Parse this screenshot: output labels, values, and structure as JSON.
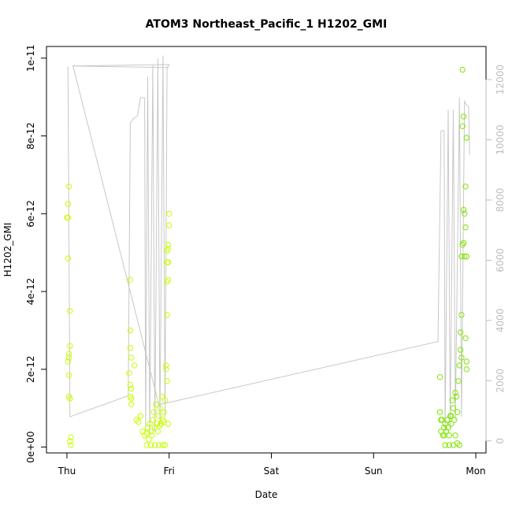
{
  "chart_data": {
    "type": "scatter",
    "title": "ATOM3 Northeast_Pacific_1 H1202_GMI",
    "xlabel": "Date",
    "ylabel": "H1202_GMI",
    "x_unit": "days since Thu 00:00",
    "xlim": [
      -0.2,
      4.1
    ],
    "ylim": [
      -1.5e-13,
      1.03e-11
    ],
    "y2lim": [
      -400,
      13100
    ],
    "x_ticks": [
      {
        "value": 0,
        "label": "Thu"
      },
      {
        "value": 1,
        "label": "Fri"
      },
      {
        "value": 2,
        "label": "Sat"
      },
      {
        "value": 3,
        "label": "Sun"
      },
      {
        "value": 4,
        "label": "Mon"
      }
    ],
    "y_ticks": [
      {
        "value": 0,
        "label": "0e+00"
      },
      {
        "value": 2e-12,
        "label": "2e-12"
      },
      {
        "value": 4e-12,
        "label": "4e-12"
      },
      {
        "value": 6e-12,
        "label": "6e-12"
      },
      {
        "value": 8e-12,
        "label": "8e-12"
      },
      {
        "value": 1e-11,
        "label": "1e-11"
      }
    ],
    "y2_ticks": [
      {
        "value": 0,
        "label": "0"
      },
      {
        "value": 2000,
        "label": "2000"
      },
      {
        "value": 4000,
        "label": "4000"
      },
      {
        "value": 6000,
        "label": "6000"
      },
      {
        "value": 8000,
        "label": "8000"
      },
      {
        "value": 10000,
        "label": "10000"
      },
      {
        "value": 12000,
        "label": "12000"
      }
    ],
    "series": [
      {
        "color": "#c8ff00",
        "points": [
          {
            "x": 0.02,
            "y": 6.7e-12
          },
          {
            "x": 0.01,
            "y": 6.25e-12
          },
          {
            "x": 0.0,
            "y": 5.9e-12
          },
          {
            "x": 0.01,
            "y": 5.9e-12
          },
          {
            "x": 0.01,
            "y": 4.85e-12
          },
          {
            "x": 0.03,
            "y": 3.5e-12
          },
          {
            "x": 0.03,
            "y": 2.6e-12
          },
          {
            "x": 0.02,
            "y": 2.4e-12
          },
          {
            "x": 0.02,
            "y": 2.3e-12
          },
          {
            "x": 0.01,
            "y": 2.2e-12
          },
          {
            "x": 0.02,
            "y": 1.85e-12
          },
          {
            "x": 0.02,
            "y": 1.3e-12
          },
          {
            "x": 0.03,
            "y": 1.25e-12
          },
          {
            "x": 0.04,
            "y": 2.5e-13
          },
          {
            "x": 0.03,
            "y": 1.5e-13
          },
          {
            "x": 0.04,
            "y": 5e-14
          },
          {
            "x": 0.62,
            "y": 4.3e-12
          },
          {
            "x": 0.62,
            "y": 3e-12
          },
          {
            "x": 0.62,
            "y": 2.55e-12
          },
          {
            "x": 0.63,
            "y": 2.3e-12
          },
          {
            "x": 0.66,
            "y": 2.1e-12
          },
          {
            "x": 0.61,
            "y": 1.9e-12
          },
          {
            "x": 0.62,
            "y": 1.6e-12
          },
          {
            "x": 0.63,
            "y": 1.5e-12
          },
          {
            "x": 0.62,
            "y": 1.3e-12
          },
          {
            "x": 0.63,
            "y": 1.25e-12
          },
          {
            "x": 0.63,
            "y": 1.1e-12
          },
          {
            "x": 0.68,
            "y": 7e-13
          },
          {
            "x": 0.7,
            "y": 6.5e-13
          },
          {
            "x": 0.72,
            "y": 8e-13
          },
          {
            "x": 0.74,
            "y": 4e-13
          },
          {
            "x": 0.76,
            "y": 3e-13
          },
          {
            "x": 0.78,
            "y": 3.5e-13
          },
          {
            "x": 0.79,
            "y": 5e-13
          },
          {
            "x": 0.8,
            "y": 2e-13
          },
          {
            "x": 0.81,
            "y": 6e-13
          },
          {
            "x": 0.82,
            "y": 4e-13
          },
          {
            "x": 0.83,
            "y": 3e-13
          },
          {
            "x": 0.84,
            "y": 7e-13
          },
          {
            "x": 0.85,
            "y": 9e-13
          },
          {
            "x": 0.86,
            "y": 5e-13
          },
          {
            "x": 0.87,
            "y": 1.1e-12
          },
          {
            "x": 0.88,
            "y": 6e-13
          },
          {
            "x": 0.89,
            "y": 4e-13
          },
          {
            "x": 0.9,
            "y": 8e-13
          },
          {
            "x": 0.91,
            "y": 1e-12
          },
          {
            "x": 0.92,
            "y": 6e-13
          },
          {
            "x": 0.93,
            "y": 1.3e-12
          },
          {
            "x": 0.94,
            "y": 7e-13
          },
          {
            "x": 0.95,
            "y": 9e-13
          },
          {
            "x": 0.96,
            "y": 1.2e-12
          },
          {
            "x": 0.97,
            "y": 2.1e-12
          },
          {
            "x": 0.98,
            "y": 1.7e-12
          },
          {
            "x": 0.97,
            "y": 2e-12
          },
          {
            "x": 0.98,
            "y": 3.4e-12
          },
          {
            "x": 0.98,
            "y": 4.25e-12
          },
          {
            "x": 0.99,
            "y": 4.3e-12
          },
          {
            "x": 0.98,
            "y": 4.75e-12
          },
          {
            "x": 0.99,
            "y": 4.75e-12
          },
          {
            "x": 0.98,
            "y": 5.05e-12
          },
          {
            "x": 0.99,
            "y": 5.1e-12
          },
          {
            "x": 0.99,
            "y": 5.2e-12
          },
          {
            "x": 1.0,
            "y": 5.7e-12
          },
          {
            "x": 1.0,
            "y": 6e-12
          },
          {
            "x": 0.78,
            "y": 5e-14
          },
          {
            "x": 0.82,
            "y": 5e-14
          },
          {
            "x": 0.86,
            "y": 5e-14
          },
          {
            "x": 0.9,
            "y": 5e-14
          },
          {
            "x": 0.94,
            "y": 5e-14
          },
          {
            "x": 0.96,
            "y": 5e-14
          },
          {
            "x": 0.99,
            "y": 6e-13
          },
          {
            "x": 0.95,
            "y": 6.5e-13
          },
          {
            "x": 0.91,
            "y": 5.5e-13
          }
        ]
      },
      {
        "color": "#7fe600",
        "points": [
          {
            "x": 3.65,
            "y": 1.8e-12
          },
          {
            "x": 3.65,
            "y": 9e-13
          },
          {
            "x": 3.66,
            "y": 7e-13
          },
          {
            "x": 3.67,
            "y": 7e-13
          },
          {
            "x": 3.66,
            "y": 4e-13
          },
          {
            "x": 3.68,
            "y": 3e-13
          },
          {
            "x": 3.69,
            "y": 5e-13
          },
          {
            "x": 3.7,
            "y": 6e-13
          },
          {
            "x": 3.71,
            "y": 4e-13
          },
          {
            "x": 3.72,
            "y": 7e-13
          },
          {
            "x": 3.73,
            "y": 5e-13
          },
          {
            "x": 3.74,
            "y": 3e-13
          },
          {
            "x": 3.75,
            "y": 8e-13
          },
          {
            "x": 3.76,
            "y": 6e-13
          },
          {
            "x": 3.77,
            "y": 1.2e-12
          },
          {
            "x": 3.78,
            "y": 1e-12
          },
          {
            "x": 3.79,
            "y": 7e-13
          },
          {
            "x": 3.8,
            "y": 1.4e-12
          },
          {
            "x": 3.81,
            "y": 1.3e-12
          },
          {
            "x": 3.82,
            "y": 9e-13
          },
          {
            "x": 3.83,
            "y": 1.7e-12
          },
          {
            "x": 3.84,
            "y": 2.1e-12
          },
          {
            "x": 3.85,
            "y": 2.5e-12
          },
          {
            "x": 3.85,
            "y": 2.95e-12
          },
          {
            "x": 3.86,
            "y": 3.4e-12
          },
          {
            "x": 3.86,
            "y": 4.9e-12
          },
          {
            "x": 3.87,
            "y": 5.2e-12
          },
          {
            "x": 3.88,
            "y": 6.1e-12
          },
          {
            "x": 3.88,
            "y": 5.25e-12
          },
          {
            "x": 3.89,
            "y": 4.9e-12
          },
          {
            "x": 3.89,
            "y": 6e-12
          },
          {
            "x": 3.9,
            "y": 6.7e-12
          },
          {
            "x": 3.9,
            "y": 5.65e-12
          },
          {
            "x": 3.91,
            "y": 4.9e-12
          },
          {
            "x": 3.91,
            "y": 7.95e-12
          },
          {
            "x": 3.87,
            "y": 8.25e-12
          },
          {
            "x": 3.88,
            "y": 8.5e-12
          },
          {
            "x": 3.87,
            "y": 9.7e-12
          },
          {
            "x": 3.9,
            "y": 2.8e-12
          },
          {
            "x": 3.91,
            "y": 2.2e-12
          },
          {
            "x": 3.91,
            "y": 2e-12
          },
          {
            "x": 3.86,
            "y": 2.3e-12
          },
          {
            "x": 3.7,
            "y": 5e-14
          },
          {
            "x": 3.74,
            "y": 5e-14
          },
          {
            "x": 3.78,
            "y": 5e-14
          },
          {
            "x": 3.82,
            "y": 1e-13
          },
          {
            "x": 3.84,
            "y": 5e-14
          },
          {
            "x": 3.8,
            "y": 3e-13
          },
          {
            "x": 3.76,
            "y": 8e-13
          },
          {
            "x": 3.69,
            "y": 3e-13
          }
        ]
      }
    ],
    "line_series": {
      "axis": "right",
      "color": "#c8c8c8",
      "points": [
        [
          0.0,
          12400
        ],
        [
          0.01,
          12400
        ],
        [
          0.03,
          800
        ],
        [
          0.6,
          1500
        ],
        [
          0.62,
          10550
        ],
        [
          0.65,
          10700
        ],
        [
          0.69,
          10800
        ],
        [
          0.72,
          11400
        ],
        [
          0.76,
          11400
        ],
        [
          0.77,
          300
        ],
        [
          0.79,
          12100
        ],
        [
          0.81,
          200
        ],
        [
          0.84,
          12500
        ],
        [
          0.86,
          300
        ],
        [
          0.89,
          12700
        ],
        [
          0.91,
          500
        ],
        [
          0.94,
          12800
        ],
        [
          0.96,
          800
        ],
        [
          0.98,
          12400
        ],
        [
          1.0,
          12500
        ],
        [
          0.06,
          12450
        ],
        [
          1.0,
          12400
        ],
        [
          0.06,
          12450
        ],
        [
          0.9,
          1200
        ],
        [
          3.63,
          3300
        ],
        [
          3.66,
          10300
        ],
        [
          3.69,
          10300
        ],
        [
          3.7,
          300
        ],
        [
          3.73,
          11000
        ],
        [
          3.75,
          400
        ],
        [
          3.78,
          11000
        ],
        [
          3.8,
          700
        ],
        [
          3.84,
          11400
        ],
        [
          3.86,
          800
        ],
        [
          3.89,
          11300
        ],
        [
          3.9,
          11200
        ],
        [
          3.93,
          11100
        ],
        [
          3.94,
          9500
        ]
      ]
    }
  }
}
